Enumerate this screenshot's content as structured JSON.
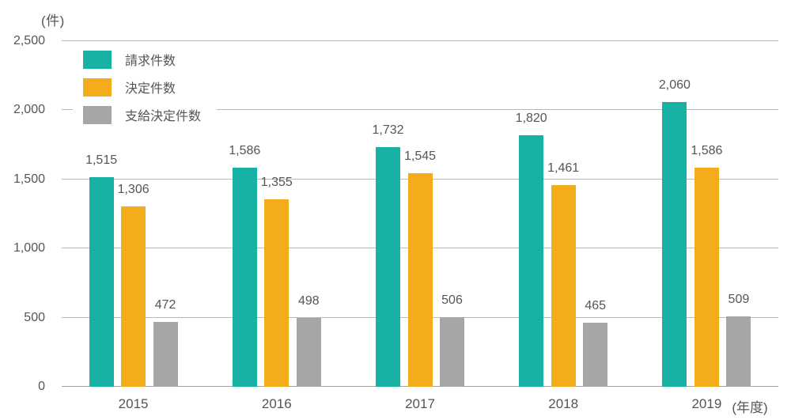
{
  "chart_data": {
    "type": "bar",
    "title": "",
    "unit_label": "(件)",
    "x_axis_suffix": "(年度)",
    "categories": [
      "2015",
      "2016",
      "2017",
      "2018",
      "2019"
    ],
    "series": [
      {
        "name": "請求件数",
        "color": "#17b2a4",
        "values": [
          1515,
          1586,
          1732,
          1820,
          2060
        ],
        "labels": [
          "1,515",
          "1,586",
          "1,732",
          "1,820",
          "2,060"
        ]
      },
      {
        "name": "決定件数",
        "color": "#f3ad1c",
        "values": [
          1306,
          1355,
          1545,
          1461,
          1586
        ],
        "labels": [
          "1,306",
          "1,355",
          "1,545",
          "1,461",
          "1,586"
        ]
      },
      {
        "name": "支給決定件数",
        "color": "#a6a6a6",
        "values": [
          472,
          498,
          506,
          465,
          509
        ],
        "labels": [
          "472",
          "498",
          "506",
          "465",
          "509"
        ]
      }
    ],
    "ylim": [
      0,
      2500
    ],
    "ytick_step": 500,
    "ytick_values": [
      0,
      500,
      1000,
      1500,
      2000,
      2500
    ],
    "ytick_labels": [
      "0",
      "500",
      "1,000",
      "1,500",
      "2,000",
      "2,500"
    ],
    "grid": true,
    "legend_position": "top-left-inside",
    "colors": {
      "gridline": "#b9b9b9",
      "baseline": "#a2a2a2",
      "text": "#555555",
      "background": "#ffffff"
    }
  }
}
